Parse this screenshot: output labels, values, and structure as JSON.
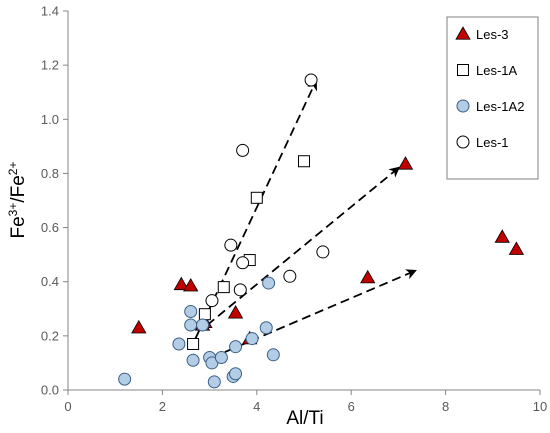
{
  "chart_data": {
    "type": "scatter",
    "xlabel": "Al/Ti",
    "ylabel": {
      "base": "Fe",
      "sup1": "3+",
      "mid": "/Fe",
      "sup2": "2+"
    },
    "xlim": [
      0,
      10
    ],
    "ylim": [
      0,
      1.4
    ],
    "x_ticks": [
      0,
      2,
      4,
      6,
      8,
      10
    ],
    "y_ticks": [
      "0.0",
      "0.2",
      "0.4",
      "0.6",
      "0.8",
      "1.0",
      "1.2",
      "1.4"
    ],
    "grid": false,
    "legend_position": "top-right",
    "series": [
      {
        "name": "Les-3",
        "marker": "triangle",
        "fill": "#c00000",
        "stroke": "#000000",
        "points": [
          [
            1.5,
            0.23
          ],
          [
            2.4,
            0.39
          ],
          [
            2.6,
            0.385
          ],
          [
            2.85,
            0.24
          ],
          [
            2.9,
            0.25
          ],
          [
            3.55,
            0.285
          ],
          [
            3.85,
            0.19
          ],
          [
            6.35,
            0.415
          ],
          [
            7.15,
            0.835
          ],
          [
            9.2,
            0.565
          ],
          [
            9.5,
            0.52
          ]
        ]
      },
      {
        "name": "Les-1A",
        "marker": "square",
        "fill": "#ffffff",
        "stroke": "#000000",
        "points": [
          [
            2.65,
            0.17
          ],
          [
            2.9,
            0.28
          ],
          [
            3.3,
            0.38
          ],
          [
            3.85,
            0.48
          ],
          [
            4.0,
            0.71
          ],
          [
            5.0,
            0.845
          ]
        ]
      },
      {
        "name": "Les-1A2",
        "marker": "circle",
        "fill": "#b4cde6",
        "stroke": "#3a5f86",
        "points": [
          [
            1.2,
            0.04
          ],
          [
            2.35,
            0.17
          ],
          [
            2.6,
            0.29
          ],
          [
            2.6,
            0.24
          ],
          [
            2.65,
            0.11
          ],
          [
            2.85,
            0.24
          ],
          [
            3.0,
            0.12
          ],
          [
            3.05,
            0.1
          ],
          [
            3.1,
            0.03
          ],
          [
            3.25,
            0.12
          ],
          [
            3.5,
            0.05
          ],
          [
            3.55,
            0.06
          ],
          [
            3.55,
            0.16
          ],
          [
            3.9,
            0.19
          ],
          [
            4.2,
            0.23
          ],
          [
            4.25,
            0.395
          ],
          [
            4.35,
            0.13
          ]
        ]
      },
      {
        "name": "Les-1",
        "marker": "circle",
        "fill": "#ffffff",
        "stroke": "#000000",
        "points": [
          [
            3.05,
            0.33
          ],
          [
            3.45,
            0.535
          ],
          [
            3.65,
            0.37
          ],
          [
            3.7,
            0.885
          ],
          [
            3.7,
            0.47
          ],
          [
            4.7,
            0.42
          ],
          [
            5.15,
            1.145
          ],
          [
            5.4,
            0.51
          ]
        ]
      }
    ],
    "arrows": [
      {
        "from": [
          2.7,
          0.19
        ],
        "to": [
          5.25,
          1.14
        ]
      },
      {
        "from": [
          2.95,
          0.24
        ],
        "to": [
          7.0,
          0.82
        ]
      },
      {
        "from": [
          3.05,
          0.12
        ],
        "to": [
          7.35,
          0.44
        ]
      }
    ]
  }
}
